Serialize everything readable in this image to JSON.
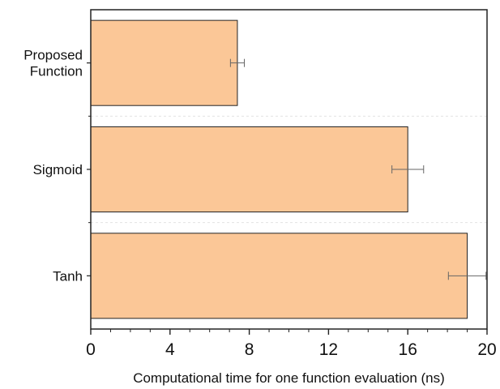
{
  "chart_data": {
    "type": "bar",
    "orientation": "horizontal",
    "categories": [
      "Proposed\nFunction",
      "Sigmoid",
      "Tanh"
    ],
    "values": [
      7.4,
      16.0,
      19.0
    ],
    "errors": [
      0.35,
      0.8,
      0.95
    ],
    "xlabel": "Computational time for one function evaluation (ns)",
    "ylabel": "",
    "title": "",
    "xlim": [
      0,
      20
    ],
    "xticks": [
      0,
      4,
      8,
      12,
      16,
      20
    ],
    "grid": false,
    "bar_color": "#fbc797",
    "bar_edge_color": "#222222",
    "error_color": "#666666"
  }
}
